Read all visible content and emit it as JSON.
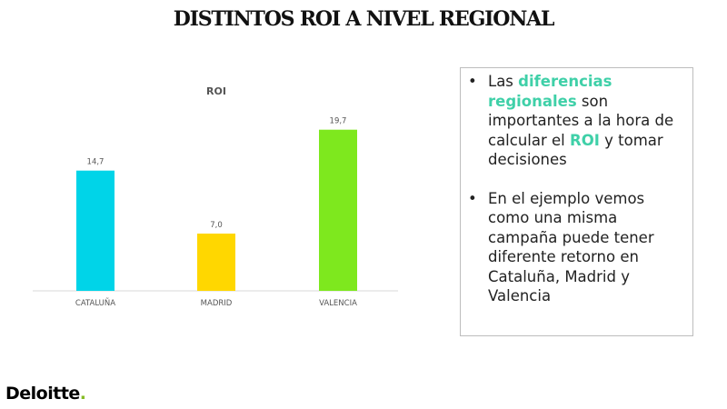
{
  "header": {
    "title": "DISTINTOS ROI A NIVEL REGIONAL"
  },
  "chart_data": {
    "type": "bar",
    "title": "ROI",
    "categories": [
      "CATALUÑA",
      "MADRID",
      "VALENCIA"
    ],
    "values": [
      14.7,
      7.0,
      19.7
    ],
    "value_labels": [
      "14,7",
      "7,0",
      "19,7"
    ],
    "colors": [
      "#00d4e8",
      "#ffd700",
      "#7ee81e"
    ],
    "ylim": [
      0,
      20
    ],
    "grid": false,
    "legend": "none"
  },
  "textbox": {
    "bullet_symbol": "•",
    "bullet1": {
      "t1": "Las ",
      "h1": "diferencias regionales",
      "t2": " son importantes a la hora de calcular el ",
      "h2": "ROI",
      "t3": " y tomar decisiones"
    },
    "bullet2": {
      "text": "En el ejemplo vemos como una misma campaña puede tener diferente retorno en Cataluña, Madrid y Valencia"
    },
    "highlight_color": "#3fd0a8"
  },
  "footer": {
    "logo_text": "Deloitte",
    "logo_dot": ".",
    "logo_dot_color": "#86bc25"
  }
}
